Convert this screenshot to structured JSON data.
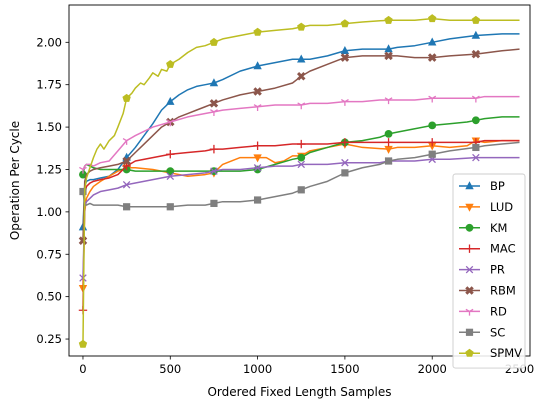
{
  "chart_data": {
    "type": "line",
    "xlabel": "Ordered Fixed Length Samples",
    "ylabel": "Operation Per Cycle",
    "xlim": [
      -80,
      2560
    ],
    "ylim": [
      0.15,
      2.22
    ],
    "xticks": [
      0,
      500,
      1000,
      1500,
      2000,
      2500
    ],
    "yticks": [
      0.25,
      0.5,
      0.75,
      1.0,
      1.25,
      1.5,
      1.75,
      2.0
    ],
    "ytick_labels": [
      "0.25",
      "0.50",
      "0.75",
      "1.00",
      "1.25",
      "1.50",
      "1.75",
      "2.00"
    ],
    "grid": false,
    "legend_position": "right",
    "series": [
      {
        "name": "BP",
        "color": "#1f77b4",
        "marker": "triangle-up",
        "x": [
          0,
          10,
          20,
          40,
          60,
          100,
          150,
          200,
          250,
          300,
          350,
          400,
          450,
          500,
          550,
          600,
          650,
          700,
          750,
          800,
          900,
          1000,
          1100,
          1200,
          1250,
          1300,
          1400,
          1500,
          1600,
          1750,
          1800,
          1900,
          2000,
          2100,
          2250,
          2400,
          2500
        ],
        "y": [
          0.91,
          1.15,
          1.18,
          1.19,
          1.19,
          1.2,
          1.21,
          1.25,
          1.32,
          1.38,
          1.45,
          1.52,
          1.6,
          1.65,
          1.69,
          1.72,
          1.74,
          1.75,
          1.76,
          1.78,
          1.83,
          1.86,
          1.88,
          1.9,
          1.9,
          1.9,
          1.92,
          1.95,
          1.96,
          1.96,
          1.97,
          1.98,
          2.0,
          2.02,
          2.04,
          2.05,
          2.05
        ],
        "marker_x": [
          0,
          250,
          500,
          750,
          1000,
          1250,
          1500,
          1750,
          2000,
          2250
        ]
      },
      {
        "name": "LUD",
        "color": "#ff7f0e",
        "marker": "triangle-down",
        "x": [
          0,
          10,
          20,
          40,
          60,
          100,
          150,
          200,
          250,
          300,
          400,
          500,
          600,
          700,
          750,
          800,
          900,
          1000,
          1050,
          1100,
          1150,
          1200,
          1250,
          1300,
          1400,
          1500,
          1600,
          1750,
          1800,
          1900,
          2000,
          2100,
          2200,
          2250,
          2300,
          2400,
          2500
        ],
        "y": [
          0.55,
          1.0,
          1.08,
          1.12,
          1.15,
          1.18,
          1.21,
          1.24,
          1.26,
          1.26,
          1.25,
          1.23,
          1.21,
          1.22,
          1.23,
          1.28,
          1.32,
          1.32,
          1.32,
          1.29,
          1.3,
          1.33,
          1.33,
          1.36,
          1.38,
          1.4,
          1.38,
          1.37,
          1.38,
          1.38,
          1.39,
          1.38,
          1.39,
          1.42,
          1.41,
          1.42,
          1.42
        ],
        "marker_x": [
          0,
          250,
          500,
          750,
          1000,
          1250,
          1500,
          1750,
          2000,
          2250
        ]
      },
      {
        "name": "KM",
        "color": "#2ca02c",
        "marker": "circle",
        "x": [
          0,
          10,
          20,
          40,
          60,
          100,
          150,
          200,
          250,
          300,
          400,
          500,
          600,
          700,
          750,
          800,
          900,
          1000,
          1100,
          1200,
          1250,
          1300,
          1400,
          1500,
          1600,
          1700,
          1750,
          1800,
          1900,
          2000,
          2100,
          2200,
          2250,
          2300,
          2400,
          2500
        ],
        "y": [
          1.22,
          1.27,
          1.28,
          1.27,
          1.26,
          1.25,
          1.25,
          1.25,
          1.25,
          1.24,
          1.24,
          1.24,
          1.24,
          1.24,
          1.24,
          1.24,
          1.24,
          1.25,
          1.28,
          1.31,
          1.32,
          1.35,
          1.38,
          1.41,
          1.42,
          1.44,
          1.46,
          1.47,
          1.49,
          1.51,
          1.52,
          1.53,
          1.54,
          1.55,
          1.56,
          1.56
        ],
        "marker_x": [
          0,
          250,
          500,
          750,
          1000,
          1250,
          1500,
          1750,
          2000,
          2250
        ]
      },
      {
        "name": "MAC",
        "color": "#d62728",
        "marker": "plus",
        "x": [
          0,
          10,
          20,
          40,
          60,
          100,
          150,
          200,
          250,
          300,
          400,
          500,
          600,
          700,
          750,
          800,
          900,
          1000,
          1100,
          1200,
          1250,
          1300,
          1400,
          1500,
          1600,
          1700,
          1750,
          1800,
          1900,
          2000,
          2100,
          2250,
          2300,
          2400,
          2500
        ],
        "y": [
          0.42,
          1.1,
          1.15,
          1.17,
          1.18,
          1.19,
          1.2,
          1.22,
          1.27,
          1.3,
          1.32,
          1.34,
          1.35,
          1.36,
          1.37,
          1.37,
          1.38,
          1.39,
          1.39,
          1.4,
          1.4,
          1.4,
          1.4,
          1.41,
          1.41,
          1.41,
          1.41,
          1.41,
          1.41,
          1.41,
          1.41,
          1.41,
          1.42,
          1.42,
          1.42
        ],
        "marker_x": [
          0,
          250,
          500,
          750,
          1000,
          1250,
          1500,
          1750,
          2000,
          2250
        ]
      },
      {
        "name": "PR",
        "color": "#9467bd",
        "marker": "x",
        "x": [
          0,
          10,
          20,
          40,
          60,
          100,
          150,
          200,
          250,
          300,
          400,
          500,
          600,
          700,
          750,
          800,
          900,
          1000,
          1100,
          1200,
          1250,
          1300,
          1400,
          1500,
          1600,
          1700,
          1750,
          1800,
          1900,
          2000,
          2100,
          2250,
          2300,
          2400,
          2500
        ],
        "y": [
          0.61,
          1.03,
          1.06,
          1.08,
          1.1,
          1.12,
          1.13,
          1.14,
          1.16,
          1.17,
          1.19,
          1.21,
          1.22,
          1.23,
          1.24,
          1.25,
          1.25,
          1.26,
          1.27,
          1.27,
          1.28,
          1.28,
          1.28,
          1.29,
          1.29,
          1.29,
          1.3,
          1.3,
          1.3,
          1.31,
          1.31,
          1.32,
          1.32,
          1.32,
          1.32
        ],
        "marker_x": [
          0,
          250,
          500,
          750,
          1000,
          1250,
          1500,
          1750,
          2000,
          2250
        ]
      },
      {
        "name": "RBM",
        "color": "#8c564b",
        "marker": "x-thick",
        "x": [
          0,
          10,
          20,
          40,
          60,
          100,
          150,
          200,
          250,
          300,
          350,
          400,
          450,
          500,
          550,
          600,
          650,
          700,
          750,
          800,
          900,
          1000,
          1100,
          1200,
          1250,
          1300,
          1400,
          1500,
          1600,
          1750,
          1800,
          1900,
          2000,
          2100,
          2250,
          2400,
          2500
        ],
        "y": [
          0.83,
          1.18,
          1.22,
          1.24,
          1.25,
          1.26,
          1.27,
          1.28,
          1.3,
          1.35,
          1.4,
          1.45,
          1.5,
          1.53,
          1.56,
          1.58,
          1.6,
          1.62,
          1.64,
          1.66,
          1.69,
          1.71,
          1.73,
          1.76,
          1.8,
          1.83,
          1.87,
          1.91,
          1.92,
          1.92,
          1.92,
          1.91,
          1.91,
          1.92,
          1.93,
          1.95,
          1.96
        ],
        "marker_x": [
          0,
          250,
          500,
          750,
          1000,
          1250,
          1500,
          1750,
          2000,
          2250
        ]
      },
      {
        "name": "RD",
        "color": "#e377c2",
        "marker": "tri-down",
        "x": [
          0,
          10,
          20,
          40,
          60,
          100,
          150,
          200,
          250,
          300,
          400,
          500,
          600,
          700,
          750,
          800,
          900,
          1000,
          1100,
          1200,
          1250,
          1300,
          1400,
          1500,
          1600,
          1700,
          1750,
          1800,
          1900,
          2000,
          2100,
          2250,
          2300,
          2400,
          2500
        ],
        "y": [
          1.25,
          1.27,
          1.28,
          1.28,
          1.27,
          1.29,
          1.3,
          1.36,
          1.42,
          1.45,
          1.5,
          1.53,
          1.56,
          1.58,
          1.59,
          1.6,
          1.61,
          1.62,
          1.63,
          1.63,
          1.63,
          1.64,
          1.64,
          1.65,
          1.65,
          1.66,
          1.66,
          1.66,
          1.66,
          1.67,
          1.67,
          1.67,
          1.68,
          1.68,
          1.68
        ],
        "marker_x": [
          0,
          250,
          500,
          750,
          1000,
          1250,
          1500,
          1750,
          2000,
          2250
        ]
      },
      {
        "name": "SC",
        "color": "#7f7f7f",
        "marker": "square",
        "x": [
          0,
          10,
          20,
          40,
          60,
          100,
          150,
          200,
          250,
          300,
          400,
          500,
          600,
          700,
          750,
          800,
          900,
          1000,
          1100,
          1200,
          1250,
          1300,
          1400,
          1500,
          1600,
          1700,
          1750,
          1800,
          1900,
          2000,
          2100,
          2250,
          2300,
          2400,
          2500
        ],
        "y": [
          1.12,
          1.04,
          1.04,
          1.05,
          1.04,
          1.04,
          1.04,
          1.04,
          1.03,
          1.03,
          1.03,
          1.03,
          1.04,
          1.04,
          1.05,
          1.06,
          1.06,
          1.07,
          1.09,
          1.11,
          1.13,
          1.15,
          1.18,
          1.23,
          1.26,
          1.28,
          1.3,
          1.31,
          1.32,
          1.34,
          1.36,
          1.38,
          1.39,
          1.4,
          1.41
        ],
        "marker_x": [
          0,
          250,
          500,
          750,
          1000,
          1250,
          1500,
          1750,
          2000,
          2250
        ]
      },
      {
        "name": "SPMV",
        "color": "#bcbd22",
        "marker": "pentagon",
        "x": [
          0,
          10,
          20,
          40,
          60,
          80,
          100,
          120,
          150,
          180,
          200,
          230,
          250,
          280,
          300,
          330,
          350,
          380,
          400,
          430,
          450,
          480,
          500,
          550,
          600,
          650,
          700,
          750,
          800,
          900,
          1000,
          1100,
          1200,
          1250,
          1300,
          1400,
          1500,
          1600,
          1750,
          1800,
          1900,
          2000,
          2100,
          2250,
          2400,
          2500
        ],
        "y": [
          0.22,
          1.13,
          1.2,
          1.26,
          1.32,
          1.37,
          1.4,
          1.37,
          1.42,
          1.45,
          1.5,
          1.58,
          1.67,
          1.7,
          1.73,
          1.76,
          1.75,
          1.79,
          1.82,
          1.8,
          1.84,
          1.83,
          1.87,
          1.9,
          1.94,
          1.97,
          1.98,
          2.0,
          2.02,
          2.04,
          2.06,
          2.07,
          2.08,
          2.09,
          2.1,
          2.1,
          2.11,
          2.12,
          2.13,
          2.13,
          2.13,
          2.14,
          2.13,
          2.13,
          2.13,
          2.13
        ],
        "marker_x": [
          0,
          250,
          500,
          750,
          1000,
          1250,
          1500,
          1750,
          2000,
          2250
        ]
      }
    ]
  }
}
